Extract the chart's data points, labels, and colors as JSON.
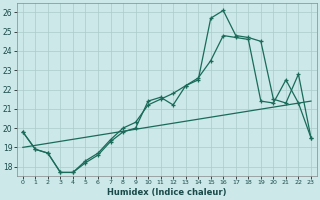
{
  "xlabel": "Humidex (Indice chaleur)",
  "bg_color": "#cce8e8",
  "grid_color": "#aacccc",
  "line_color": "#1a6b5a",
  "xlim": [
    -0.5,
    23.5
  ],
  "ylim": [
    17.5,
    26.5
  ],
  "xticks": [
    0,
    1,
    2,
    3,
    4,
    5,
    6,
    7,
    8,
    9,
    10,
    11,
    12,
    13,
    14,
    15,
    16,
    17,
    18,
    19,
    20,
    21,
    22,
    23
  ],
  "yticks": [
    18,
    19,
    20,
    21,
    22,
    23,
    24,
    25,
    26
  ],
  "curve1_x": [
    0,
    1,
    2,
    3,
    4,
    5,
    6,
    7,
    8,
    9,
    10,
    11,
    12,
    13,
    14,
    15,
    16,
    17,
    18,
    19,
    20,
    21,
    22,
    23
  ],
  "curve1_y": [
    19.8,
    18.9,
    18.7,
    17.7,
    17.7,
    18.2,
    18.6,
    19.3,
    19.8,
    20.0,
    21.4,
    21.6,
    21.2,
    22.2,
    22.5,
    25.7,
    26.1,
    24.8,
    24.7,
    24.5,
    21.5,
    21.3,
    22.8,
    19.5
  ],
  "curve2_x": [
    0,
    1,
    2,
    3,
    4,
    5,
    6,
    7,
    8,
    9,
    10,
    11,
    12,
    13,
    14,
    15,
    16,
    17,
    18,
    19,
    20,
    21,
    22,
    23
  ],
  "curve2_y": [
    19.8,
    18.9,
    18.7,
    17.7,
    17.7,
    18.3,
    18.7,
    19.4,
    20.0,
    20.3,
    21.2,
    21.5,
    21.8,
    22.2,
    22.6,
    23.5,
    24.8,
    24.7,
    24.6,
    21.4,
    21.3,
    22.5,
    21.3,
    19.5
  ],
  "curve3_x": [
    0,
    23
  ],
  "curve3_y": [
    19.0,
    21.4
  ]
}
